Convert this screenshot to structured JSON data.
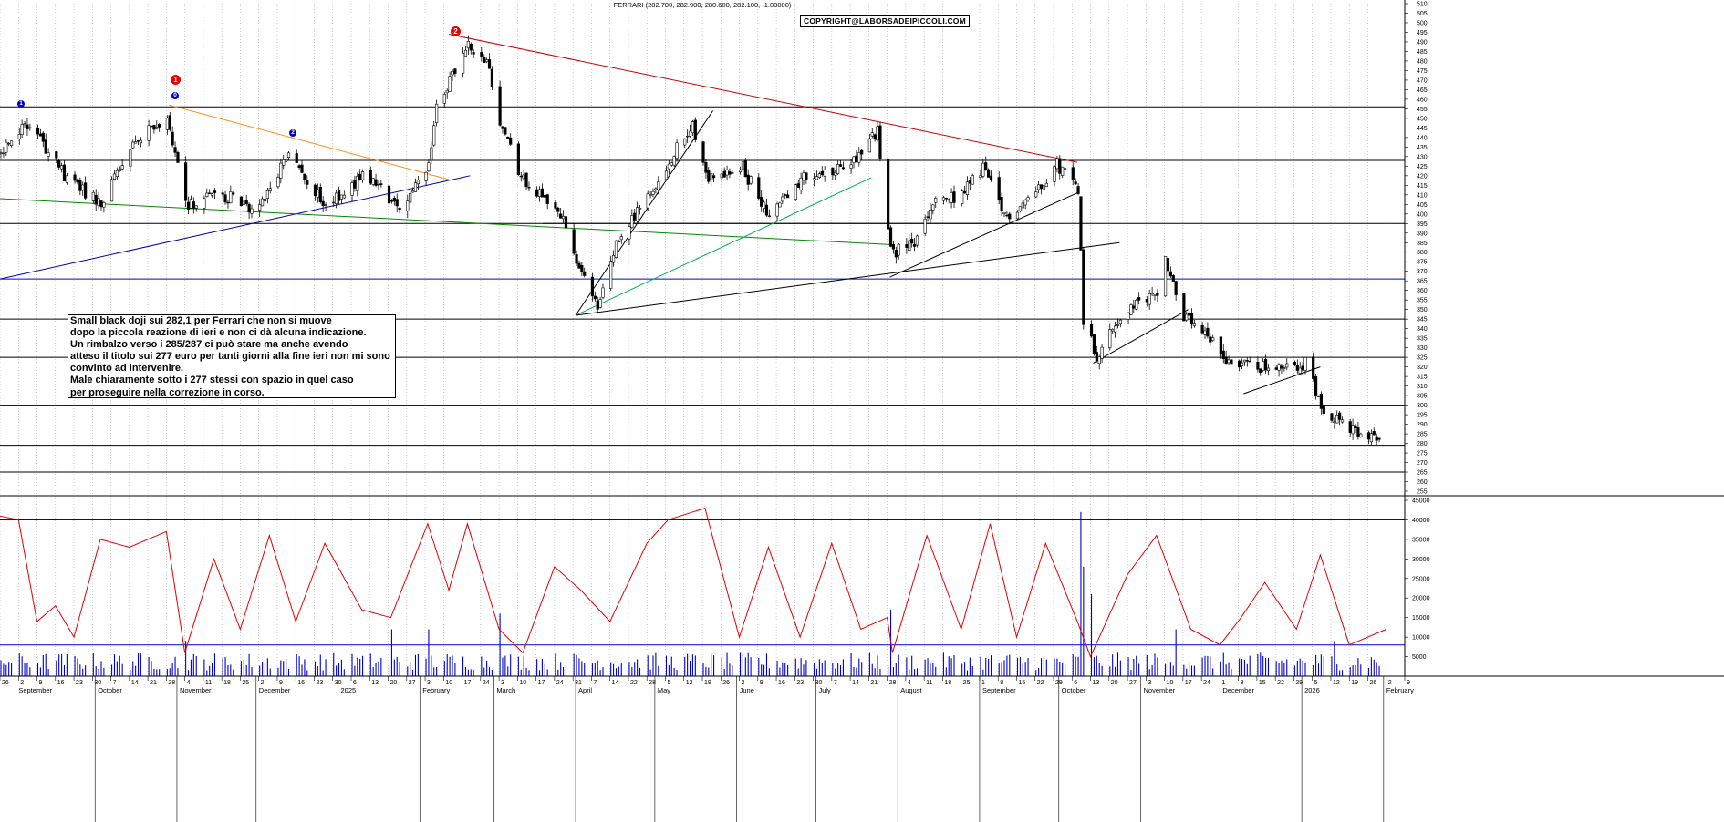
{
  "header": {
    "title": "FERRARI (282.700, 282.900, 280.600, 282.100, -1.00000)"
  },
  "copyright": "COPYRIGHT@LABORSADEIPICCOLI.COM",
  "comment_lines": [
    "Small black doji sui 282,1 per Ferrari che non si muove",
    "dopo la piccola reazione di ieri e non ci dà alcuna indicazione.",
    "Un rimbalzo  verso i 285/287 ci  può stare ma anche avendo",
    "atteso il titolo sui 277 euro per tanti giorni alla fine ieri non mi sono",
    "convinto ad intervenire.",
    "Male chiaramente sotto i 277 stessi con spazio in quel caso",
    "per proseguire nella correzione in corso."
  ],
  "markers": [
    {
      "label": "1",
      "color": "#0000cc",
      "kind": "blue"
    },
    {
      "label": "1",
      "color": "#ee0000",
      "kind": "red"
    },
    {
      "label": "0",
      "color": "#0000cc",
      "kind": "blue"
    },
    {
      "label": "2",
      "color": "#0000cc",
      "kind": "blue"
    },
    {
      "label": "2",
      "color": "#ee0000",
      "kind": "red"
    }
  ],
  "price_axis": {
    "min": 255,
    "max": 510,
    "step": 5
  },
  "volume_axis": {
    "ticks": [
      5000,
      10000,
      15000,
      20000,
      25000,
      30000,
      35000,
      40000,
      45000
    ]
  },
  "bottom_axis": {
    "day_labels": [
      "26",
      "2",
      "9",
      "16",
      "23",
      "30",
      "7",
      "14",
      "21",
      "28",
      "4",
      "11",
      "18",
      "25",
      "2",
      "9",
      "16",
      "23",
      "30",
      "6",
      "13",
      "20",
      "27",
      "3",
      "10",
      "17",
      "24",
      "3",
      "10",
      "17",
      "24",
      "31",
      "7",
      "14",
      "22",
      "28",
      "5",
      "12",
      "19",
      "26",
      "2",
      "9",
      "16",
      "23",
      "30",
      "7",
      "14",
      "21",
      "28",
      "4",
      "11",
      "18",
      "25",
      "1",
      "8",
      "15",
      "22",
      "29",
      "6",
      "13",
      "20",
      "27",
      "3",
      "10",
      "17",
      "24",
      "1",
      "8",
      "15",
      "22",
      "29",
      "5",
      "12",
      "19",
      "26",
      "2",
      "9"
    ],
    "month_labels": [
      "September",
      "October",
      "November",
      "December",
      "2025",
      "February",
      "March",
      "April",
      "May",
      "June",
      "July",
      "August",
      "September",
      "October",
      "November",
      "December",
      "2026",
      "February"
    ]
  },
  "chart_data": [
    {
      "type": "candlestick",
      "title": "FERRARI (282.700, 282.900, 280.600, 282.100, -1.00000)",
      "series_name": "FERRARI",
      "last": {
        "open": 282.7,
        "high": 282.9,
        "low": 280.6,
        "close": 282.1,
        "change": -1.0
      },
      "ylim": [
        255,
        510
      ],
      "x_range": [
        "2024-08-26",
        "2026-02-09"
      ],
      "close_path": [
        [
          "2024-08-26",
          432
        ],
        [
          "2024-09-06",
          448
        ],
        [
          "2024-09-20",
          418
        ],
        [
          "2024-10-03",
          405
        ],
        [
          "2024-10-15",
          435
        ],
        [
          "2024-10-28",
          452
        ],
        [
          "2024-11-04",
          404
        ],
        [
          "2024-11-18",
          410
        ],
        [
          "2024-12-02",
          402
        ],
        [
          "2024-12-12",
          431
        ],
        [
          "2024-12-27",
          404
        ],
        [
          "2025-01-10",
          420
        ],
        [
          "2025-01-24",
          404
        ],
        [
          "2025-02-03",
          420
        ],
        [
          "2025-02-07",
          455
        ],
        [
          "2025-02-18",
          488
        ],
        [
          "2025-02-26",
          481
        ],
        [
          "2025-03-03",
          446
        ],
        [
          "2025-03-12",
          417
        ],
        [
          "2025-03-26",
          400
        ],
        [
          "2025-04-03",
          370
        ],
        [
          "2025-04-09",
          351
        ],
        [
          "2025-04-17",
          388
        ],
        [
          "2025-04-28",
          410
        ],
        [
          "2025-05-06",
          428
        ],
        [
          "2025-05-15",
          446
        ],
        [
          "2025-05-21",
          418
        ],
        [
          "2025-06-03",
          424
        ],
        [
          "2025-06-13",
          398
        ],
        [
          "2025-06-25",
          418
        ],
        [
          "2025-07-07",
          421
        ],
        [
          "2025-07-16",
          430
        ],
        [
          "2025-07-24",
          443
        ],
        [
          "2025-07-29",
          380
        ],
        [
          "2025-08-07",
          384
        ],
        [
          "2025-08-14",
          405
        ],
        [
          "2025-08-25",
          410
        ],
        [
          "2025-09-02",
          425
        ],
        [
          "2025-09-10",
          398
        ],
        [
          "2025-09-19",
          408
        ],
        [
          "2025-09-30",
          426
        ],
        [
          "2025-10-08",
          414
        ],
        [
          "2025-10-10",
          345
        ],
        [
          "2025-10-15",
          326
        ],
        [
          "2025-10-24",
          346
        ],
        [
          "2025-11-07",
          360
        ],
        [
          "2025-11-10",
          377
        ],
        [
          "2025-11-17",
          346
        ],
        [
          "2025-11-28",
          332
        ],
        [
          "2025-12-05",
          322
        ],
        [
          "2025-12-12",
          322
        ],
        [
          "2025-12-22",
          318
        ],
        [
          "2026-01-02",
          322
        ],
        [
          "2026-01-08",
          300
        ],
        [
          "2026-01-16",
          291
        ],
        [
          "2026-01-23",
          283
        ],
        [
          "2026-01-30",
          282.1
        ]
      ],
      "horizontal_levels": [
        456,
        428,
        395,
        366,
        345,
        325,
        300,
        279,
        265
      ],
      "trendlines": [
        {
          "color": "#cc0000",
          "from": [
            "2025-02-12",
            494
          ],
          "to": [
            "2025-10-08",
            427
          ]
        },
        {
          "color": "#ff8c1a",
          "from": [
            "2024-10-29",
            457
          ],
          "to": [
            "2025-02-12",
            418
          ]
        },
        {
          "color": "#0000aa",
          "from": [
            "2024-08-26",
            366
          ],
          "to": [
            "2025-02-20",
            420
          ]
        },
        {
          "color": "#008800",
          "from": [
            "2024-08-26",
            408
          ],
          "to": [
            "2025-07-29",
            384
          ]
        },
        {
          "color": "#000000",
          "from": [
            "2025-04-01",
            347
          ],
          "to": [
            "2025-05-23",
            454
          ]
        },
        {
          "color": "#00aa55",
          "from": [
            "2025-04-01",
            347
          ],
          "to": [
            "2025-07-22",
            419
          ]
        },
        {
          "color": "#000000",
          "from": [
            "2025-04-01",
            347
          ],
          "to": [
            "2025-10-24",
            385
          ]
        },
        {
          "color": "#000000",
          "from": [
            "2025-07-29",
            367
          ],
          "to": [
            "2025-10-08",
            411
          ]
        },
        {
          "color": "#000000",
          "from": [
            "2025-10-14",
            322
          ],
          "to": [
            "2025-11-19",
            350
          ]
        },
        {
          "color": "#000000",
          "from": [
            "2025-12-10",
            306
          ],
          "to": [
            "2026-01-08",
            320
          ]
        }
      ]
    },
    {
      "type": "bar+line",
      "series": [
        {
          "name": "volume",
          "color": "#0000cc"
        },
        {
          "name": "volume average",
          "color": "#e00000"
        }
      ],
      "ylim": [
        0,
        45000
      ],
      "reference_levels": [
        40000,
        8000
      ],
      "average_path": [
        [
          "2024-08-26",
          41000
        ],
        [
          "2024-09-02",
          40000
        ],
        [
          "2024-09-09",
          14000
        ],
        [
          "2024-09-16",
          18000
        ],
        [
          "2024-09-23",
          10000
        ],
        [
          "2024-10-03",
          35000
        ],
        [
          "2024-10-14",
          33000
        ],
        [
          "2024-10-28",
          37000
        ],
        [
          "2024-11-04",
          6000
        ],
        [
          "2024-11-15",
          30000
        ],
        [
          "2024-11-25",
          12000
        ],
        [
          "2024-12-06",
          36000
        ],
        [
          "2024-12-16",
          14000
        ],
        [
          "2024-12-27",
          34000
        ],
        [
          "2025-01-10",
          17000
        ],
        [
          "2025-01-21",
          15000
        ],
        [
          "2025-02-04",
          39000
        ],
        [
          "2025-02-12",
          22000
        ],
        [
          "2025-02-19",
          39000
        ],
        [
          "2025-03-03",
          12000
        ],
        [
          "2025-03-12",
          6000
        ],
        [
          "2025-03-24",
          28000
        ],
        [
          "2025-04-03",
          22000
        ],
        [
          "2025-04-14",
          14000
        ],
        [
          "2025-04-28",
          34000
        ],
        [
          "2025-05-06",
          40000
        ],
        [
          "2025-05-20",
          43000
        ],
        [
          "2025-06-02",
          10000
        ],
        [
          "2025-06-13",
          33000
        ],
        [
          "2025-06-25",
          10000
        ],
        [
          "2025-07-07",
          34000
        ],
        [
          "2025-07-18",
          12000
        ],
        [
          "2025-07-28",
          15000
        ],
        [
          "2025-07-30",
          6000
        ],
        [
          "2025-08-12",
          36000
        ],
        [
          "2025-08-25",
          12000
        ],
        [
          "2025-09-05",
          39000
        ],
        [
          "2025-09-15",
          10000
        ],
        [
          "2025-09-26",
          34000
        ],
        [
          "2025-10-08",
          14000
        ],
        [
          "2025-10-13",
          5000
        ],
        [
          "2025-10-27",
          26000
        ],
        [
          "2025-11-07",
          36000
        ],
        [
          "2025-11-20",
          12000
        ],
        [
          "2025-12-01",
          8000
        ],
        [
          "2025-12-09",
          15000
        ],
        [
          "2025-12-18",
          24000
        ],
        [
          "2025-12-30",
          12000
        ],
        [
          "2026-01-08",
          31000
        ],
        [
          "2026-01-19",
          8000
        ],
        [
          "2026-01-26",
          10000
        ],
        [
          "2026-02-02",
          12000
        ]
      ],
      "spikes": [
        [
          "2024-11-04",
          9000
        ],
        [
          "2025-01-21",
          12000
        ],
        [
          "2025-02-04",
          12000
        ],
        [
          "2025-03-03",
          16000
        ],
        [
          "2025-07-29",
          17000
        ],
        [
          "2025-10-09",
          42000
        ],
        [
          "2025-10-10",
          28000
        ],
        [
          "2025-10-13",
          21000
        ],
        [
          "2025-11-14",
          12000
        ],
        [
          "2026-01-13",
          9000
        ]
      ]
    }
  ]
}
